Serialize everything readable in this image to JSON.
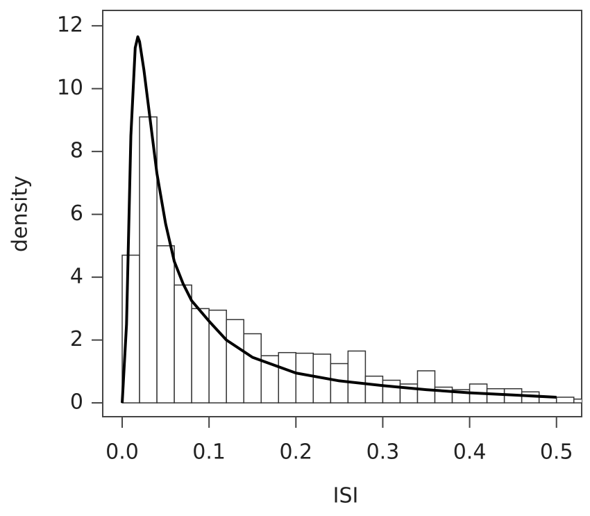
{
  "chart_data": {
    "type": "histogram",
    "xlabel": "ISI",
    "ylabel": "density",
    "bins": [
      0,
      0.02,
      0.04,
      0.06,
      0.08,
      0.1,
      0.12,
      0.14,
      0.16,
      0.18,
      0.2,
      0.22,
      0.24,
      0.26,
      0.28,
      0.3,
      0.32,
      0.34,
      0.36,
      0.38,
      0.4,
      0.42,
      0.44,
      0.46,
      0.48,
      0.5,
      0.52,
      0.54
    ],
    "values": [
      4.7,
      9.1,
      5.0,
      3.75,
      3.0,
      2.95,
      2.65,
      2.2,
      1.5,
      1.6,
      1.58,
      1.55,
      1.25,
      1.65,
      0.85,
      0.72,
      0.6,
      1.02,
      0.5,
      0.42,
      0.6,
      0.45,
      0.45,
      0.35,
      0.18,
      0.18,
      0.12
    ],
    "color": "#ffffff",
    "line": {
      "color": "#000000",
      "x": [
        0,
        0.005,
        0.01,
        0.015,
        0.018,
        0.02,
        0.025,
        0.03,
        0.04,
        0.05,
        0.06,
        0.07,
        0.08,
        0.1,
        0.12,
        0.15,
        0.2,
        0.25,
        0.3,
        0.35,
        0.4,
        0.45,
        0.5
      ],
      "values": [
        0,
        2.5,
        8.5,
        11.3,
        11.65,
        11.5,
        10.6,
        9.5,
        7.3,
        5.7,
        4.5,
        3.8,
        3.25,
        2.6,
        2.0,
        1.45,
        0.95,
        0.7,
        0.55,
        0.42,
        0.32,
        0.25,
        0.18
      ]
    },
    "xlim": [
      -0.0224,
      0.529
    ],
    "ylim": [
      -0.44,
      12.49
    ],
    "xticks": [
      {
        "value": 0,
        "label": "0.0"
      },
      0.1,
      0.2,
      0.3,
      0.4,
      0.5
    ],
    "yticks": [
      0,
      2,
      4,
      6,
      8,
      10,
      12
    ],
    "grid": false
  }
}
